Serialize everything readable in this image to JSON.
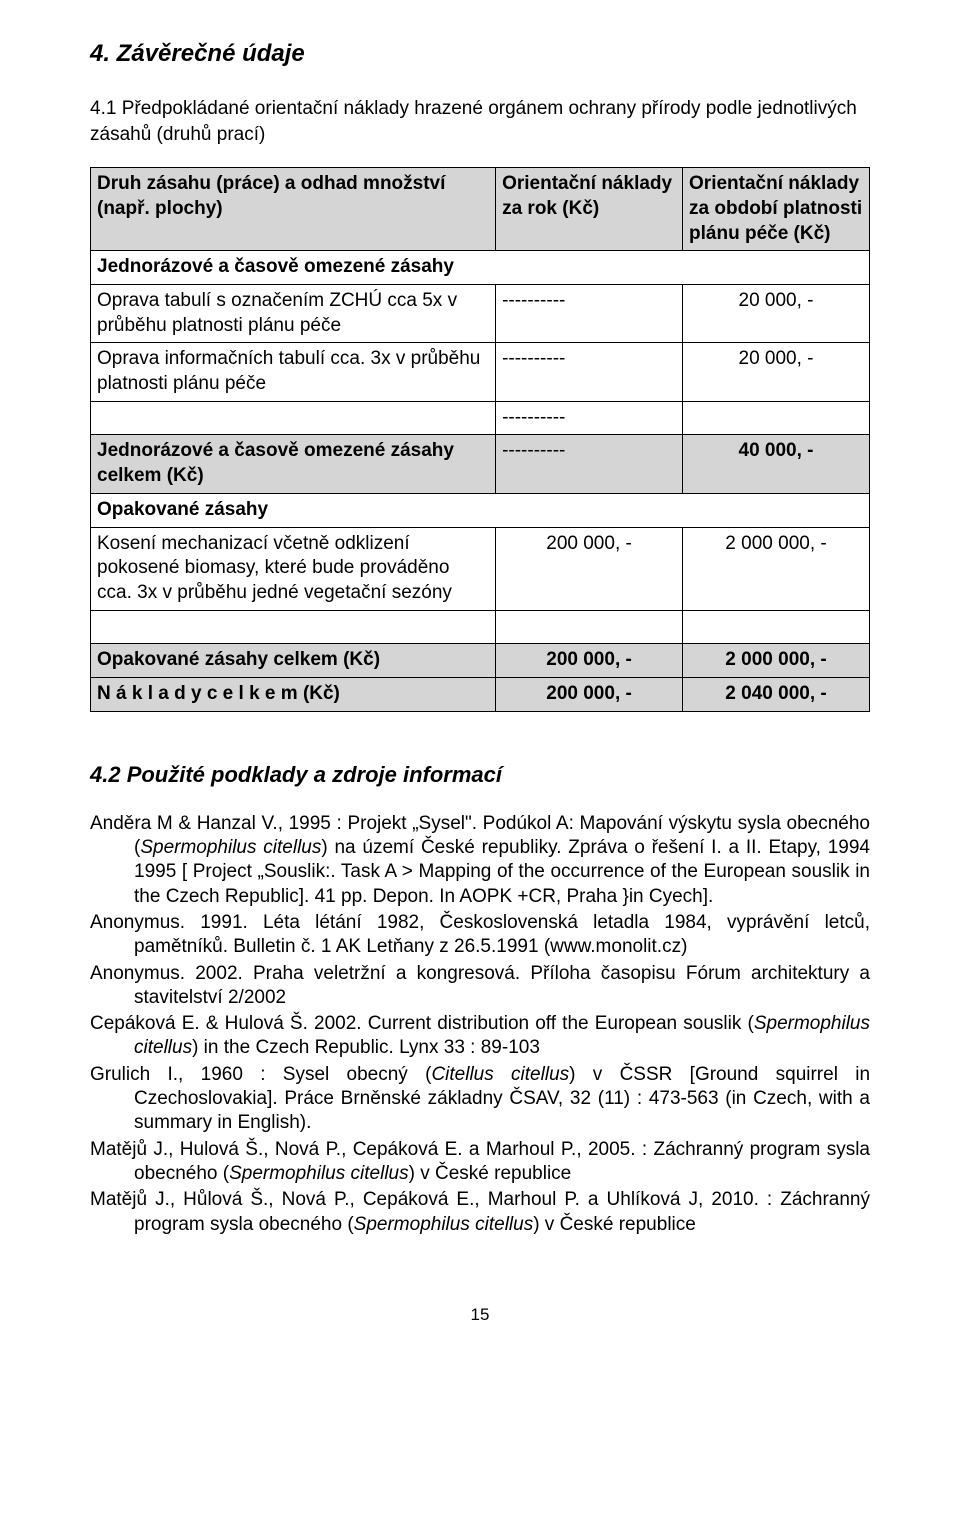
{
  "section_title": "4. Závěrečné údaje",
  "subheading": "4.1 Předpokládané orientační náklady hrazené orgánem ochrany přírody podle jednotlivých zásahů (druhů prací)",
  "table": {
    "columns": {
      "c0_pct": 52,
      "c1_pct": 24,
      "c2_pct": 24
    },
    "shaded_bg": "#d5d5d5",
    "border_color": "#000000",
    "header": {
      "c0": "Druh zásahu (práce) a odhad množství (např. plochy)",
      "c1": "Orientační náklady za rok (Kč)",
      "c2": "Orientační náklady za období platnosti plánu péče (Kč)"
    },
    "group1_label": "Jednorázové a časově omezené zásahy",
    "rows_group1": [
      {
        "label": "Oprava tabulí s označením ZCHÚ cca  5x  v průběhu platnosti plánu péče",
        "col1": "----------",
        "col2": "20 000, -"
      },
      {
        "label": "Oprava informačních tabulí cca. 3x v průběhu platnosti plánu péče",
        "col1": "----------",
        "col2": "20 000, -"
      },
      {
        "label": "",
        "col1": "----------",
        "col2": ""
      }
    ],
    "group1_total": {
      "label": "Jednorázové a časově omezené zásahy celkem (Kč)",
      "col1": "----------",
      "col2": "40 000, -"
    },
    "group2_label": "Opakované zásahy",
    "rows_group2": [
      {
        "label": "Kosení mechanizací včetně odklizení pokosené biomasy, které bude prováděno cca. 3x v průběhu jedné vegetační sezóny",
        "col1": "200 000, -",
        "col2": "2 000 000, -"
      },
      {
        "label": "",
        "col1": "",
        "col2": ""
      }
    ],
    "group2_total": {
      "label": "Opakované zásahy celkem (Kč)",
      "col1": "200 000, -",
      "col2": "2 000 000, -"
    },
    "grand_total": {
      "label": "N á k l a d y   c e l k e m  (Kč)",
      "col1": "200 000, -",
      "col2": "2 040 000, -"
    }
  },
  "subsection_title": "4.2 Použité podklady a zdroje informací",
  "refs": {
    "r1a": "Anděra M & Hanzal V., 1995 : Projekt „Sysel\". Podúkol A: Mapování výskytu sysla obecného (",
    "r1i": "Spermophilus citellus",
    "r1b": ") na území České republiky. Zpráva o řešení I. a II. Etapy, 1994 1995 [ Project „Souslik:. Task A > Mapping of the occurrence of the European souslik in the Czech Republic]. 41 pp. Depon. In AOPK +CR, Praha }in Cyech].",
    "r2": "Anonymus. 1991. Léta létání 1982, Československá letadla 1984, vyprávění letců, pamětníků. Bulletin č. 1 AK Letňany z 26.5.1991 (www.monolit.cz)",
    "r3": "Anonymus. 2002. Praha veletržní a kongresová. Příloha časopisu Fórum architektury a stavitelství 2/2002",
    "r4a": "Cepáková E. & Hulová Š. 2002. Current distribution off the European souslik (",
    "r4i": "Spermophilus citellus",
    "r4b": ") in the Czech Republic. Lynx 33 : 89-103",
    "r5a": "Grulich I., 1960 : Sysel obecný (",
    "r5i": "Citellus citellus",
    "r5b": ") v ČSSR [Ground squirrel in Czechoslovakia]. Práce Brněnské základny ČSAV, 32 (11) : 473-563 (in Czech, with a summary in English).",
    "r6a": "Matějů J., Hulová Š., Nová P., Cepáková E. a Marhoul P., 2005. : Záchranný program sysla obecného (",
    "r6i": "Spermophilus citellus",
    "r6b": ") v České republice",
    "r7a": "Matějů J., Hůlová Š., Nová P., Cepáková E., Marhoul P. a Uhlíková J, 2010. : Záchranný program sysla obecného (",
    "r7i": "Spermophilus citellus",
    "r7b": ") v České republice"
  },
  "page_number": "15"
}
